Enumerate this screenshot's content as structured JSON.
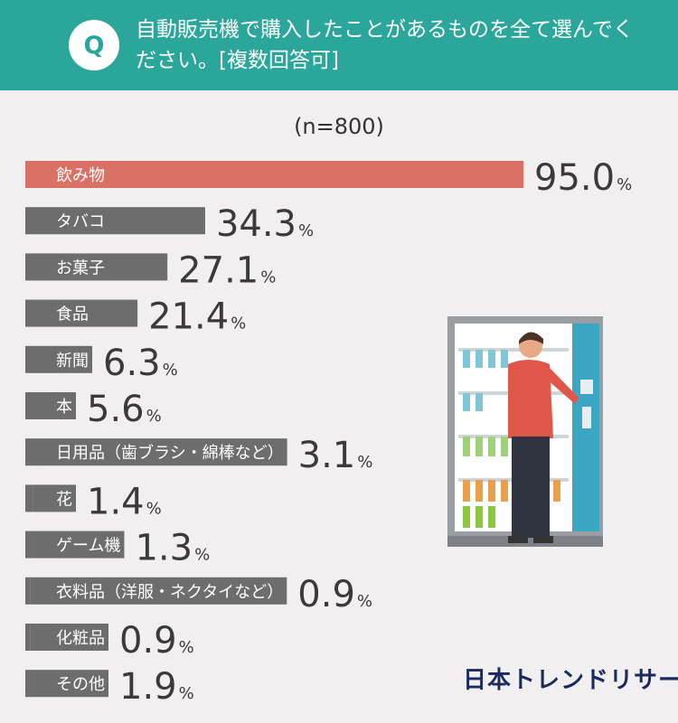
{
  "header": {
    "badge": "Q",
    "question": "自動販売機で購入したことがあるものを全て選んでください。[複数回答可]"
  },
  "sample_size": "(n=800)",
  "brand": "日本トレンドリサーチ",
  "colors": {
    "header": "#2aa69a",
    "highlight_bar": "#db7165",
    "bar": "#6d6d6d",
    "background": "#f1eff0"
  },
  "chart_data": {
    "type": "bar",
    "orientation": "horizontal",
    "categories": [
      "飲み物",
      "タバコ",
      "お菓子",
      "食品",
      "新聞",
      "本",
      "日用品（歯ブラシ・綿棒など）",
      "花",
      "ゲーム機",
      "衣料品（洋服・ネクタイなど）",
      "化粧品",
      "その他"
    ],
    "values": [
      95.0,
      34.3,
      27.1,
      21.4,
      6.3,
      5.6,
      3.1,
      1.4,
      1.3,
      0.9,
      0.9,
      1.9
    ],
    "value_labels": [
      "95.0",
      "34.3",
      "27.1",
      "21.4",
      "6.3",
      "5.6",
      "3.1",
      "1.4",
      "1.3",
      "0.9",
      "0.9",
      "1.9"
    ],
    "unit": "%",
    "highlight_index": 0
  }
}
